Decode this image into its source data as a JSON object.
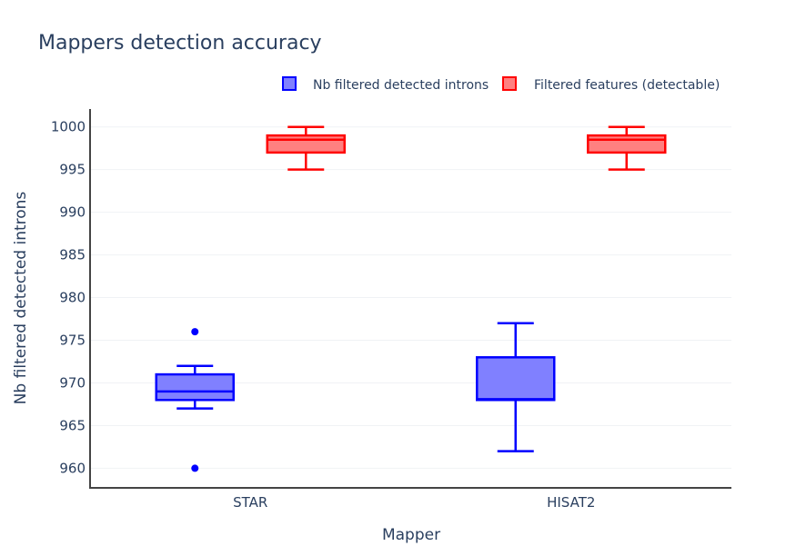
{
  "chart_data": {
    "type": "box",
    "title": "Mappers detection accuracy",
    "xlabel": "Mapper",
    "ylabel": "Nb filtered detected introns",
    "categories": [
      "STAR",
      "HISAT2"
    ],
    "yticks": [
      960,
      965,
      970,
      975,
      980,
      985,
      990,
      995,
      1000
    ],
    "ylim": [
      957.7,
      1002.1
    ],
    "grid": true,
    "legend_position": "top-right",
    "series": [
      {
        "name": "Nb filtered detected introns",
        "color": "#0000ff",
        "fill": "#8080ff",
        "boxes": [
          {
            "category": "STAR",
            "whisker_low": 967,
            "q1": 968,
            "median": 969,
            "q3": 971,
            "whisker_high": 972,
            "outliers": [
              960,
              976
            ]
          },
          {
            "category": "HISAT2",
            "whisker_low": 962,
            "q1": 968,
            "median": 968.1,
            "q3": 973,
            "whisker_high": 977,
            "outliers": []
          }
        ]
      },
      {
        "name": "Filtered features (detectable)",
        "color": "#ff0000",
        "fill": "#ff8080",
        "boxes": [
          {
            "category": "STAR",
            "whisker_low": 995,
            "q1": 997,
            "median": 998.5,
            "q3": 999,
            "whisker_high": 1000,
            "outliers": []
          },
          {
            "category": "HISAT2",
            "whisker_low": 995,
            "q1": 997,
            "median": 998.5,
            "q3": 999,
            "whisker_high": 1000,
            "outliers": []
          }
        ]
      }
    ]
  }
}
